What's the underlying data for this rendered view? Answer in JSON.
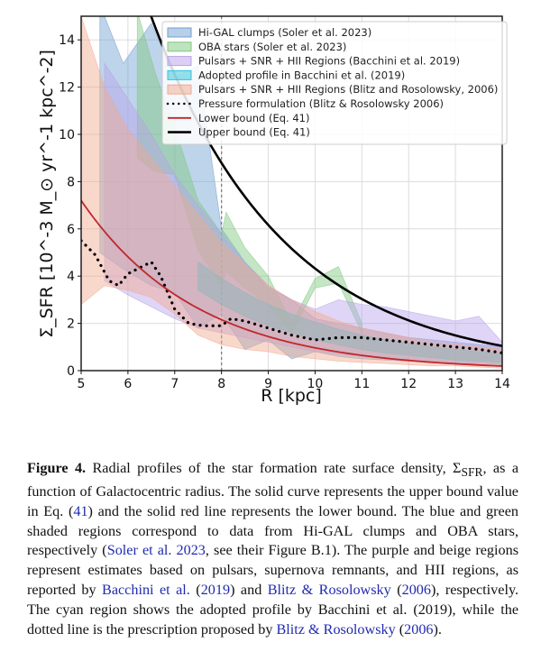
{
  "chart_data": {
    "type": "area",
    "title": "",
    "xlabel": "R [kpc]",
    "ylabel": "Σ_SFR [10^-3 M_⊙ yr^-1 kpc^-2]",
    "xlim": [
      5,
      14
    ],
    "ylim": [
      0,
      15
    ],
    "xticks": [
      "5",
      "6",
      "7",
      "8",
      "9",
      "10",
      "11",
      "12",
      "13",
      "14"
    ],
    "yticks": [
      "0",
      "2",
      "4",
      "6",
      "8",
      "10",
      "12",
      "14"
    ],
    "grid": true,
    "vline_x": 8,
    "legend_position": "top-right",
    "series": [
      {
        "name": "Hi-GAL clumps (Soler et al. 2023)",
        "kind": "band",
        "color": "#6f9fd0",
        "x": [
          5.4,
          5.9,
          6.5,
          7.0,
          7.5,
          8.0,
          8.5,
          9.0,
          9.5,
          10.0,
          10.5,
          11.0,
          11.5,
          12.0,
          12.5,
          13.0,
          13.5,
          14.0
        ],
        "upper": [
          15.5,
          13.0,
          14.7,
          12.4,
          12.9,
          6.0,
          4.6,
          3.5,
          3.0,
          2.2,
          2.0,
          1.8,
          1.6,
          1.4,
          1.3,
          1.2,
          1.1,
          1.0
        ],
        "lower": [
          5.0,
          4.3,
          3.6,
          3.3,
          1.8,
          2.4,
          0.9,
          1.3,
          0.5,
          0.8,
          0.6,
          0.5,
          0.45,
          0.4,
          0.35,
          0.3,
          0.3,
          0.25
        ]
      },
      {
        "name": "OBA stars (Soler et al. 2023)",
        "kind": "band",
        "color": "#7fc77f",
        "x": [
          6.2,
          6.6,
          7.0,
          7.5,
          8.0,
          8.1,
          8.5,
          9.0,
          9.5,
          10.0,
          10.5,
          11.0
        ],
        "upper": [
          15.2,
          12.5,
          10.3,
          7.2,
          5.8,
          6.7,
          5.2,
          4.0,
          2.0,
          3.9,
          4.4,
          2.0
        ],
        "lower": [
          9.0,
          8.4,
          8.3,
          5.1,
          3.6,
          4.2,
          3.5,
          2.8,
          1.6,
          3.5,
          3.7,
          1.6
        ]
      },
      {
        "name": "Pulsars + SNR + HII Regions (Bacchini et al. 2019)",
        "kind": "band",
        "color": "#b7a2ea",
        "x": [
          5.5,
          6.0,
          6.5,
          7.0,
          7.5,
          8.0,
          8.5,
          9.0,
          9.5,
          10.0,
          10.5,
          11.0,
          11.5,
          12.0,
          12.5,
          13.0,
          13.5,
          14.0
        ],
        "upper": [
          13.0,
          11.5,
          10.0,
          8.3,
          7.0,
          5.8,
          4.6,
          3.6,
          3.0,
          2.6,
          3.0,
          2.8,
          2.7,
          2.5,
          2.3,
          2.1,
          2.3,
          1.2
        ],
        "lower": [
          3.8,
          3.2,
          2.7,
          2.2,
          1.8,
          1.6,
          1.4,
          1.2,
          1.0,
          0.8,
          0.7,
          0.6,
          0.5,
          0.45,
          0.4,
          0.35,
          0.3,
          0.3
        ]
      },
      {
        "name": "Adopted profile in Bacchini et al. (2019)",
        "kind": "band",
        "color": "#2ec4dc",
        "x": [
          7.5,
          8.0,
          8.5,
          9.0,
          9.5,
          10.0,
          10.5,
          11.0,
          11.5,
          12.0,
          12.5,
          13.0,
          13.5,
          14.0
        ],
        "upper": [
          4.6,
          3.9,
          3.3,
          2.8,
          2.4,
          2.05,
          1.75,
          1.5,
          1.3,
          1.15,
          1.0,
          0.9,
          0.8,
          0.7
        ],
        "lower": [
          3.4,
          2.8,
          2.3,
          1.9,
          1.6,
          1.3,
          1.1,
          0.9,
          0.75,
          0.65,
          0.55,
          0.45,
          0.4,
          0.35
        ]
      },
      {
        "name": "Pulsars + SNR + HII Regions (Blitz and Rosolowsky, 2006)",
        "kind": "band",
        "color": "#f1a98f",
        "x": [
          5.0,
          5.5,
          6.0,
          6.5,
          7.0,
          7.5,
          8.0,
          8.5,
          9.0,
          9.5,
          10.0,
          10.5,
          11.0,
          11.5,
          12.0,
          12.5,
          13.0,
          13.5,
          14.0
        ],
        "upper": [
          15.0,
          12.0,
          10.2,
          9.0,
          7.8,
          6.6,
          5.4,
          4.5,
          3.6,
          3.0,
          2.5,
          2.1,
          1.8,
          1.6,
          1.4,
          1.2,
          1.1,
          1.0,
          0.9
        ],
        "lower": [
          2.8,
          3.6,
          3.4,
          3.1,
          2.4,
          1.5,
          1.1,
          0.9,
          0.8,
          0.6,
          0.5,
          0.4,
          0.35,
          0.3,
          0.25,
          0.2,
          0.2,
          0.15,
          0.1
        ]
      },
      {
        "name": "Pressure formulation (Blitz & Rosolowsky 2006)",
        "kind": "dotted",
        "color": "#000000",
        "x": [
          5.0,
          5.3,
          5.6,
          5.8,
          6.0,
          6.2,
          6.5,
          6.7,
          7.0,
          7.3,
          7.6,
          8.0,
          8.2,
          8.5,
          9.0,
          9.5,
          10.0,
          10.5,
          11.0,
          11.5,
          12.0,
          12.5,
          13.0,
          13.5,
          14.0
        ],
        "y": [
          5.5,
          4.9,
          3.8,
          3.6,
          4.1,
          4.3,
          4.6,
          4.0,
          2.6,
          2.0,
          1.9,
          1.9,
          2.2,
          2.1,
          1.8,
          1.5,
          1.3,
          1.4,
          1.4,
          1.3,
          1.2,
          1.1,
          1.0,
          0.9,
          0.75
        ]
      },
      {
        "name": "Lower bound (Eq. 41)",
        "kind": "line",
        "color": "#c0272d",
        "y0": 7.2,
        "scale": 0.402
      },
      {
        "name": "Upper bound (Eq. 41)",
        "kind": "line",
        "color": "#000000",
        "y0": 25.5,
        "scale": 0.355
      }
    ]
  },
  "caption": {
    "label": "Figure 4.",
    "p1": " Radial profiles of the star formation rate surface density, Σ",
    "sub": "SFR",
    "p2": ", as a function of Galactocentric radius. The solid curve represents the upper bound value in Eq. (",
    "eq": "41",
    "p3": ") and the solid red line represents the lower bound. The blue and green shaded regions correspond to data from Hi-GAL clumps and OBA stars, respectively (",
    "cite1": "Soler et al. 2023",
    "p4": ", see their Figure B.1). The purple and beige regions represent estimates based on pulsars, supernova remnants, and HII regions, as reported by ",
    "cite2": "Bacchini et al.",
    "p5": " (",
    "cite3": "2019",
    "p6": ") and ",
    "cite4": "Blitz & Rosolowsky",
    "p7": " (",
    "cite5": "2006",
    "p8": "), respectively. The cyan region shows the adopted profile by Bacchini et al. (2019), while the dotted line is the prescription proposed by ",
    "cite6": "Blitz & Rosolowsky",
    "p9": " (",
    "cite7": "2006",
    "p10": ")."
  }
}
